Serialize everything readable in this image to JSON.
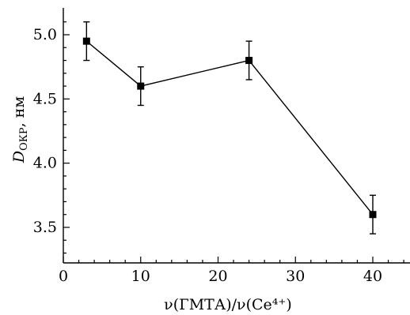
{
  "chart_data": {
    "type": "line",
    "title": "",
    "xlabel": "ν(ГМТА)/ν(Ce⁴⁺)",
    "ylabel_main": "D",
    "ylabel_sub": "ОКР",
    "ylabel_unit": ", нм",
    "xlim": [
      0,
      45
    ],
    "ylim": [
      3.0,
      5.2
    ],
    "x_major_ticks": [
      0,
      10,
      20,
      30,
      40
    ],
    "x_tick_labels": [
      "0",
      "10",
      "20",
      "30",
      "40"
    ],
    "y_major_ticks": [
      3.5,
      4.0,
      4.5,
      5.0
    ],
    "y_tick_labels": [
      "3.5",
      "4.0",
      "4.5",
      "5.0"
    ],
    "grid": false,
    "series": [
      {
        "x": [
          3,
          10,
          24,
          40
        ],
        "y": [
          4.95,
          4.6,
          4.8,
          3.6
        ],
        "error": [
          0.15,
          0.15,
          0.15,
          0.15
        ],
        "marker": "square",
        "color": "#000000"
      }
    ]
  }
}
